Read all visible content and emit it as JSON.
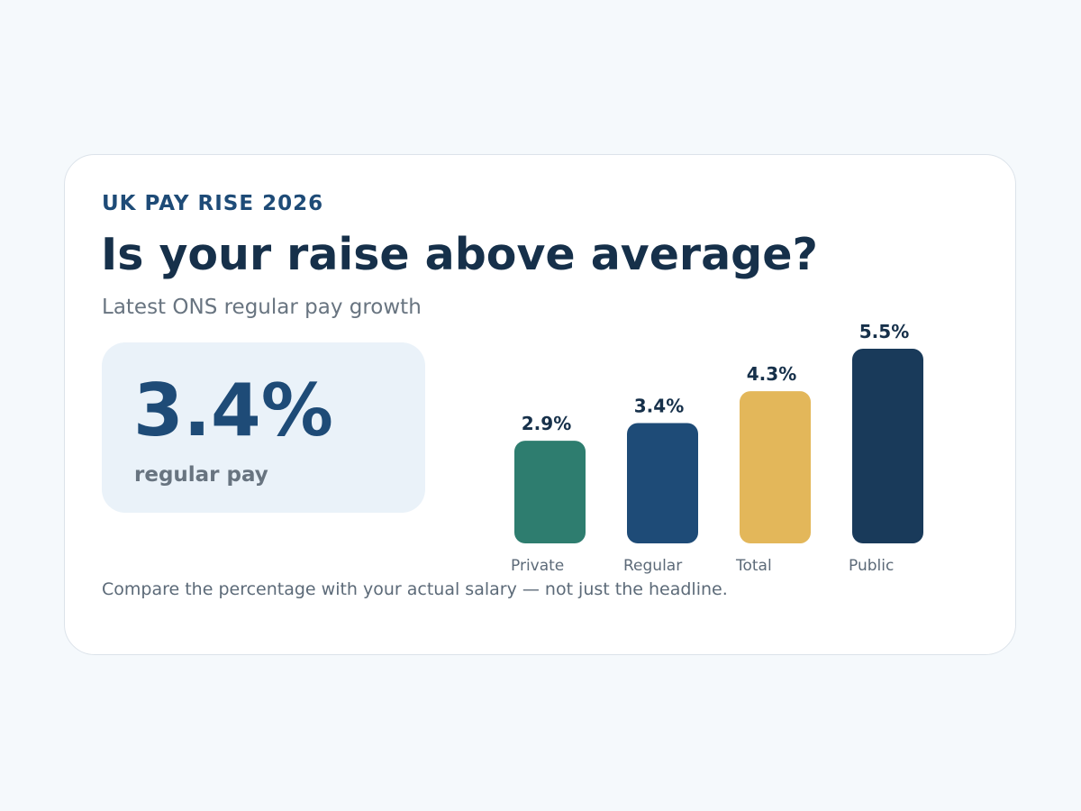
{
  "header": {
    "eyebrow": "UK PAY RISE 2026",
    "title": "Is your raise above average?",
    "subtitle": "Latest ONS regular pay growth"
  },
  "highlight": {
    "value": "3.4%",
    "label": "regular pay"
  },
  "footnote": "Compare the percentage with your actual salary — not just the headline.",
  "chart_data": {
    "type": "bar",
    "title": "",
    "xlabel": "",
    "ylabel": "",
    "ylim": [
      0,
      5.5
    ],
    "grid": false,
    "legend": "none",
    "categories": [
      "Private",
      "Regular",
      "Total",
      "Public"
    ],
    "values": [
      2.9,
      3.4,
      4.3,
      5.5
    ],
    "value_labels": [
      "2.9%",
      "3.4%",
      "4.3%",
      "5.5%"
    ],
    "colors": [
      "#2e7d6f",
      "#1e4b77",
      "#e3b75a",
      "#193a5a"
    ]
  }
}
